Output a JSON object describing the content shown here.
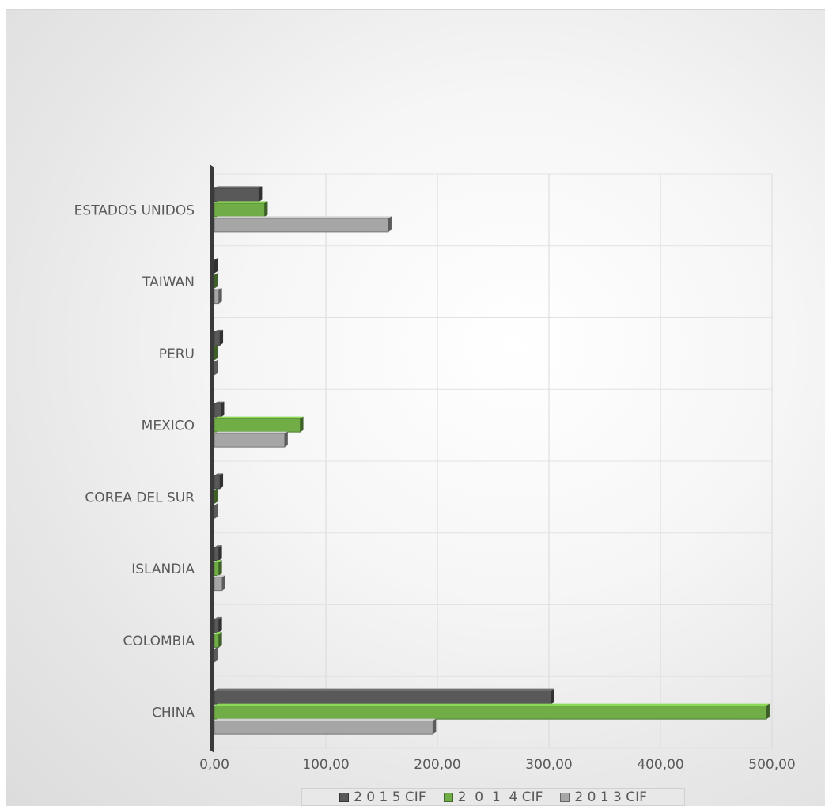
{
  "chart_data": {
    "type": "bar",
    "orientation": "horizontal",
    "style": "3d-clustered",
    "categories": [
      "ESTADOS UNIDOS",
      "TAIWAN",
      "PERU",
      "MEXICO",
      "COREA DEL SUR",
      "ISLANDIA",
      "COLOMBIA",
      "CHINA"
    ],
    "series": [
      {
        "name": "2 0 1 5 CIF",
        "color": "#595959",
        "values": [
          40,
          0,
          5,
          6,
          5,
          4,
          4,
          302
        ]
      },
      {
        "name": "2  0  1  4 CIF",
        "color": "#70ad47",
        "values": [
          45,
          0,
          0,
          77,
          0,
          4,
          4,
          495
        ]
      },
      {
        "name": "2 0 1 3 CIF",
        "color": "#a6a6a6",
        "values": [
          156,
          4,
          0,
          63,
          0,
          7,
          0,
          196
        ]
      }
    ],
    "xlim": [
      0,
      500
    ],
    "xticks": [
      "0,00",
      "100,00",
      "200,00",
      "300,00",
      "400,00",
      "500,00"
    ],
    "grid": true,
    "legend": "bottom",
    "title": "",
    "xlabel": "",
    "ylabel": ""
  }
}
